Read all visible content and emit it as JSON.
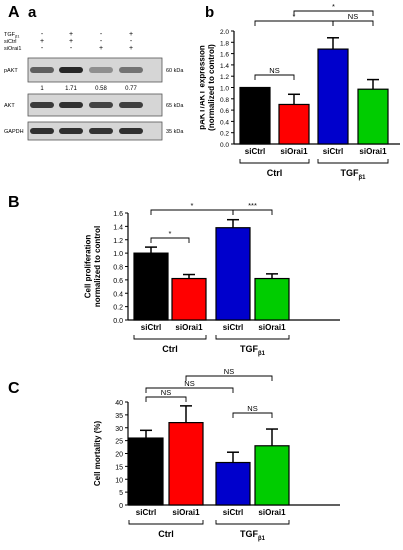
{
  "figure": {
    "panel_A": "A",
    "panel_A_sub_a": "a",
    "panel_A_sub_b": "b",
    "panel_B": "B",
    "panel_C": "C"
  },
  "blot": {
    "row_labels": [
      "TGF",
      "siCtrl",
      "siOrai1"
    ],
    "tgf_subscript": "β1",
    "treatment_signs": [
      [
        "-",
        "+",
        "-",
        "+"
      ],
      [
        "+",
        "+",
        "-",
        "-"
      ],
      [
        "-",
        "-",
        "+",
        "+"
      ]
    ],
    "bands": [
      {
        "label": "pAKT",
        "kda": "60 kDa"
      },
      {
        "label": "AKT",
        "kda": "65 kDa"
      },
      {
        "label": "GAPDH",
        "kda": "35 kDa"
      }
    ],
    "quantification": [
      "1",
      "1.71",
      "0.58",
      "0.77"
    ],
    "band_intensity": [
      [
        0.55,
        0.85,
        0.3,
        0.45
      ],
      [
        0.75,
        0.8,
        0.7,
        0.72
      ],
      [
        0.8,
        0.8,
        0.78,
        0.8
      ]
    ]
  },
  "chart_data": [
    {
      "id": "Ab",
      "type": "bar",
      "categories": [
        "siCtrl",
        "siOrai1",
        "siCtrl",
        "siOrai1"
      ],
      "values": [
        1.0,
        0.7,
        1.68,
        0.97
      ],
      "errors": [
        0.0,
        0.18,
        0.2,
        0.17
      ],
      "colors": [
        "#000000",
        "#ff0000",
        "#0000cc",
        "#00cc00"
      ],
      "ylabel": "pAKT/AKT expression\n(normalized to control)",
      "ylim": [
        0,
        2.0
      ],
      "yticks": [
        "0.0",
        "0.2",
        "0.4",
        "0.6",
        "0.8",
        "1.0",
        "1.2",
        "1.4",
        "1.6",
        "1.8",
        "2.0"
      ],
      "groups": [
        {
          "label": "Ctrl"
        },
        {
          "label": "TGF",
          "sub": "β1"
        }
      ],
      "annotations": [
        "NS",
        "*",
        "NS",
        "*"
      ]
    },
    {
      "id": "B",
      "type": "bar",
      "categories": [
        "siCtrl",
        "siOrai1",
        "siCtrl",
        "siOrai1"
      ],
      "values": [
        1.0,
        0.62,
        1.38,
        0.62
      ],
      "errors": [
        0.09,
        0.06,
        0.12,
        0.07
      ],
      "colors": [
        "#000000",
        "#ff0000",
        "#0000cc",
        "#00cc00"
      ],
      "ylabel": "Cell proliferation\nnormalized to control",
      "ylim": [
        0,
        1.6
      ],
      "yticks": [
        "0.0",
        "0.2",
        "0.4",
        "0.6",
        "0.8",
        "1.0",
        "1.2",
        "1.4",
        "1.6"
      ],
      "groups": [
        {
          "label": "Ctrl"
        },
        {
          "label": "TGF",
          "sub": "β1"
        }
      ],
      "annotations": [
        "*",
        "*",
        "***"
      ]
    },
    {
      "id": "C",
      "type": "bar",
      "categories": [
        "siCtrl",
        "siOrai1",
        "siCtrl",
        "siOrai1"
      ],
      "values": [
        26,
        32,
        16.5,
        23
      ],
      "errors": [
        3,
        6.5,
        4,
        6.5
      ],
      "colors": [
        "#000000",
        "#ff0000",
        "#0000cc",
        "#00cc00"
      ],
      "ylabel": "Cell mortality (%)",
      "ylim": [
        0,
        40
      ],
      "yticks": [
        "0",
        "5",
        "10",
        "15",
        "20",
        "25",
        "30",
        "35",
        "40"
      ],
      "groups": [
        {
          "label": "Ctrl"
        },
        {
          "label": "TGF",
          "sub": "β1"
        }
      ],
      "annotations": [
        "NS",
        "NS",
        "NS",
        "NS"
      ]
    }
  ]
}
